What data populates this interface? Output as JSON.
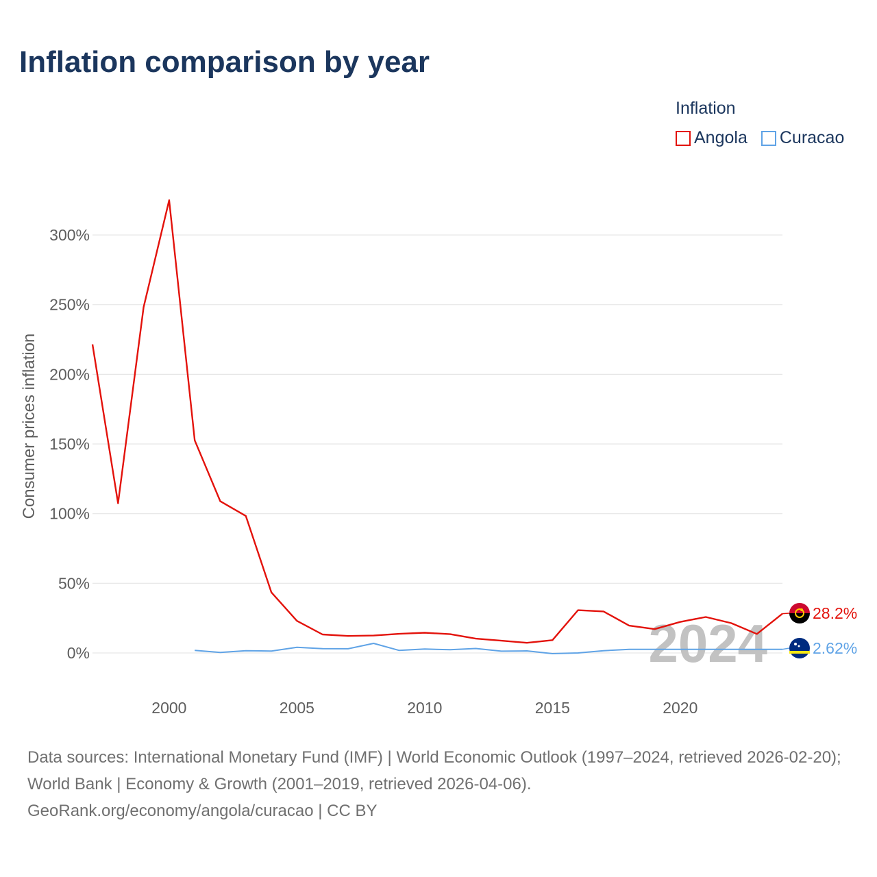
{
  "page": {
    "title": "Inflation comparison by year",
    "footer_sources": "Data sources: International Monetary Fund (IMF) | World Economic Outlook (1997–2024, retrieved 2026-02-20); World Bank | Economy & Growth (2001–2019, retrieved 2026-04-06).",
    "footer_credit": "GeoRank.org/economy/angola/curacao | CC BY"
  },
  "legend": {
    "title": "Inflation",
    "items": [
      {
        "label": "Angola",
        "color": "#e3120b"
      },
      {
        "label": "Curacao",
        "color": "#5fa3e6"
      }
    ]
  },
  "chart_data": {
    "type": "line",
    "title": "Inflation comparison by year",
    "ylabel": "Consumer prices inflation",
    "xlabel": "",
    "xlim": [
      1997,
      2024
    ],
    "ylim": [
      -20,
      330
    ],
    "x_ticks": [
      2000,
      2005,
      2010,
      2015,
      2020
    ],
    "y_ticks": [
      0,
      50,
      100,
      150,
      200,
      250,
      300
    ],
    "y_tick_labels": [
      "0%",
      "50%",
      "100%",
      "150%",
      "200%",
      "250%",
      "300%"
    ],
    "watermark_year": "2024",
    "grid": true,
    "series": [
      {
        "name": "Angola",
        "color": "#e3120b",
        "flag": "angola-flag",
        "end_label": "28.2%",
        "x": [
          1997,
          1998,
          1999,
          2000,
          2001,
          2002,
          2003,
          2004,
          2005,
          2006,
          2007,
          2008,
          2009,
          2010,
          2011,
          2012,
          2013,
          2014,
          2015,
          2016,
          2017,
          2018,
          2019,
          2020,
          2021,
          2022,
          2023,
          2024
        ],
        "values": [
          221.5,
          107.4,
          248.2,
          325.0,
          152.6,
          108.9,
          98.3,
          43.5,
          23.0,
          13.3,
          12.2,
          12.5,
          13.7,
          14.5,
          13.5,
          10.3,
          8.8,
          7.3,
          9.2,
          30.7,
          29.8,
          19.6,
          17.1,
          22.3,
          25.8,
          21.4,
          13.6,
          28.2
        ]
      },
      {
        "name": "Curacao",
        "color": "#5fa3e6",
        "flag": "curacao-flag",
        "end_label": "2.62%",
        "x": [
          2001,
          2002,
          2003,
          2004,
          2005,
          2006,
          2007,
          2008,
          2009,
          2010,
          2011,
          2012,
          2013,
          2014,
          2015,
          2016,
          2017,
          2018,
          2019,
          2020,
          2021,
          2022,
          2023,
          2024
        ],
        "values": [
          1.8,
          0.4,
          1.6,
          1.4,
          4.1,
          3.1,
          3.0,
          6.9,
          1.8,
          2.8,
          2.3,
          3.2,
          1.3,
          1.5,
          -0.5,
          0.0,
          1.6,
          2.6,
          2.6,
          2.62,
          2.62,
          2.62,
          2.62,
          2.62
        ]
      }
    ]
  }
}
